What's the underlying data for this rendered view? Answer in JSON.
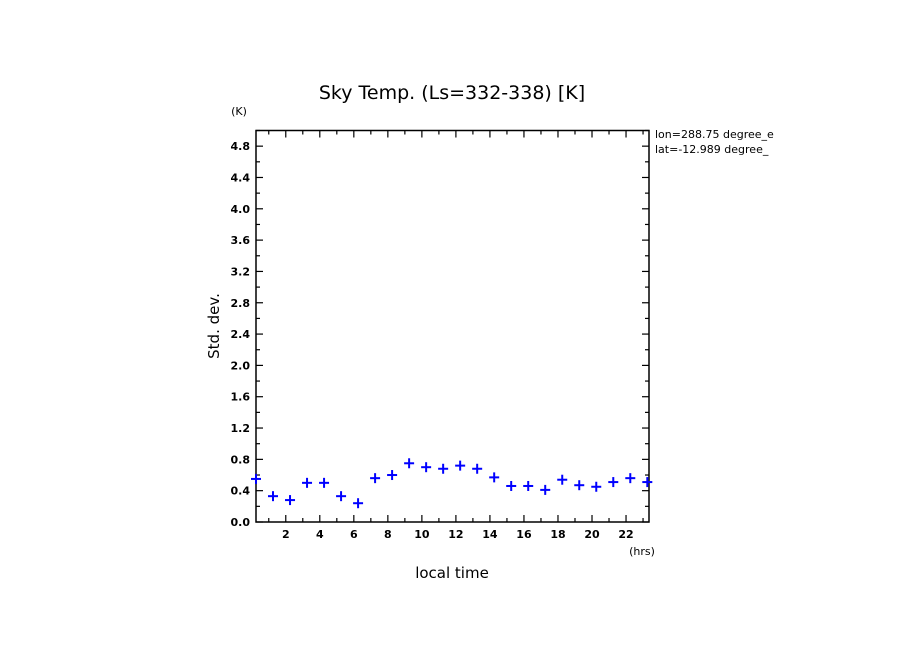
{
  "chart_data": {
    "type": "scatter",
    "title": "Sky Temp. (Ls=332-338) [K]",
    "xlabel": "local time",
    "ylabel": "Std. dev.",
    "xunit": "(hrs)",
    "yunit": "(K)",
    "xlim": [
      0.25,
      23.35
    ],
    "ylim": [
      0,
      5.0
    ],
    "xticks": [
      2,
      4,
      6,
      8,
      10,
      12,
      14,
      16,
      18,
      20,
      22
    ],
    "yticks": [
      "0.0",
      "0.4",
      "0.8",
      "1.2",
      "1.6",
      "2.0",
      "2.4",
      "2.8",
      "3.2",
      "3.6",
      "4.0",
      "4.4",
      "4.8"
    ],
    "grid": false,
    "marker_color": "#0000ff",
    "annotations": [
      "lon=288.75 degree_e",
      "lat=-12.989 degree_"
    ],
    "series": [
      {
        "name": "Std. dev.",
        "x": [
          0.25,
          1.25,
          2.25,
          3.25,
          4.25,
          5.25,
          6.25,
          7.25,
          8.25,
          9.25,
          10.25,
          11.25,
          12.25,
          13.25,
          14.25,
          15.25,
          16.25,
          17.25,
          18.25,
          19.25,
          20.25,
          21.25,
          22.25,
          23.25
        ],
        "values": [
          0.55,
          0.33,
          0.28,
          0.5,
          0.5,
          0.33,
          0.24,
          0.56,
          0.6,
          0.75,
          0.7,
          0.68,
          0.72,
          0.68,
          0.57,
          0.46,
          0.46,
          0.41,
          0.54,
          0.47,
          0.45,
          0.51,
          0.56,
          0.51
        ]
      }
    ]
  }
}
